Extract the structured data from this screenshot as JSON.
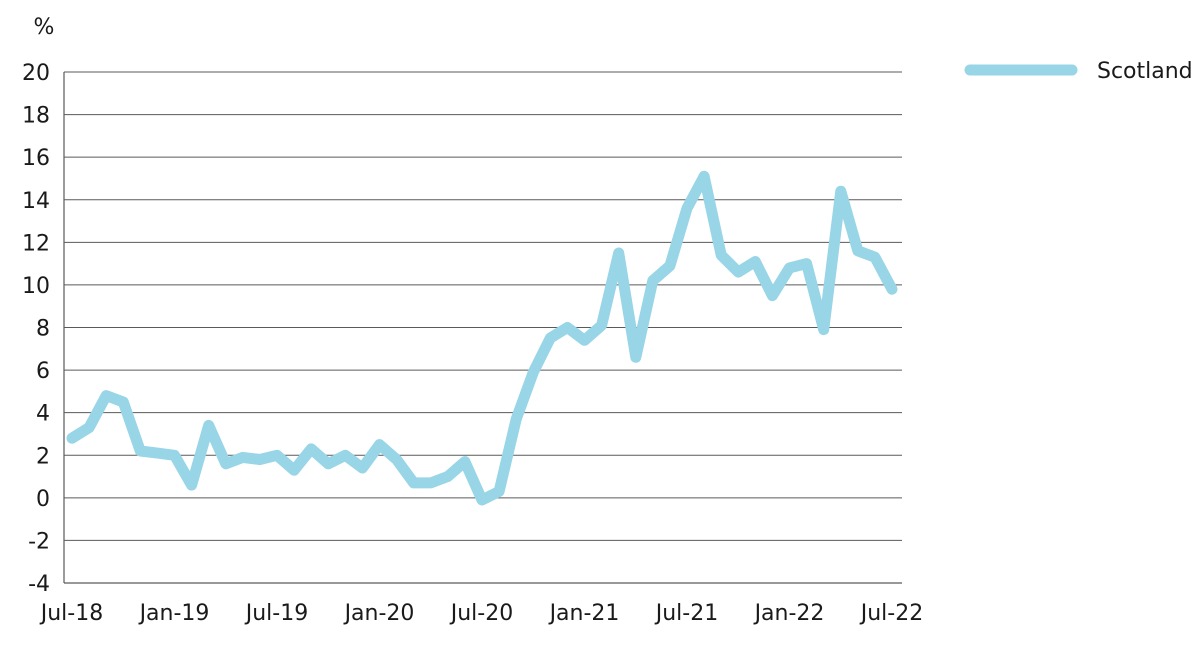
{
  "chart_data": {
    "type": "line",
    "title": "",
    "xlabel": "",
    "ylabel": "%",
    "ylim": [
      -4,
      20
    ],
    "yticks": [
      "20",
      "18",
      "16",
      "14",
      "12",
      "10",
      "8",
      "6",
      "4",
      "2",
      "0",
      "-2",
      "-4"
    ],
    "ytick_values": [
      20,
      18,
      16,
      14,
      12,
      10,
      8,
      6,
      4,
      2,
      0,
      -2,
      -4
    ],
    "xtick_labels": [
      "Jul-18",
      "Jan-19",
      "Jul-19",
      "Jan-20",
      "Jul-20",
      "Jan-21",
      "Jul-21",
      "Jan-22",
      "Jul-22"
    ],
    "xtick_months": [
      0,
      6,
      12,
      18,
      24,
      30,
      36,
      42,
      48
    ],
    "grid": true,
    "legend_position": "top-right",
    "series": [
      {
        "name": "Scotland",
        "color": "#98d5e6",
        "values": [
          2.8,
          3.3,
          4.8,
          4.5,
          2.2,
          2.1,
          2.0,
          0.6,
          3.4,
          1.6,
          1.9,
          1.8,
          2.0,
          1.3,
          2.3,
          1.6,
          2.0,
          1.4,
          2.5,
          1.8,
          0.7,
          0.7,
          1.0,
          1.7,
          -0.1,
          0.3,
          3.7,
          5.9,
          7.5,
          8.0,
          7.4,
          8.1,
          11.5,
          6.6,
          10.2,
          10.9,
          13.6,
          15.1,
          11.4,
          10.6,
          11.1,
          9.5,
          10.8,
          11.0,
          7.9,
          14.4,
          11.6,
          11.3,
          9.8
        ]
      }
    ]
  }
}
